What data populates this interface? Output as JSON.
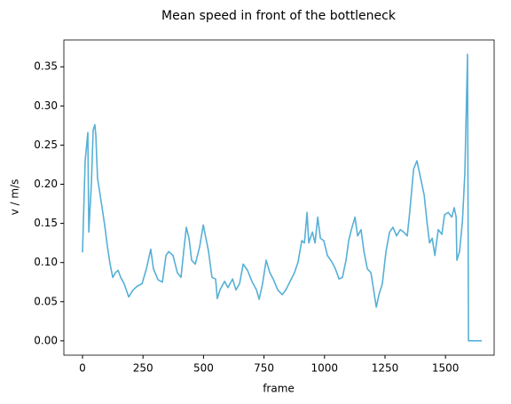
{
  "chart_data": {
    "type": "line",
    "title": "Mean speed in front of the bottleneck",
    "x_label": "frame",
    "y_label": "v / m/s",
    "series": [
      {
        "color": "#56b0d6",
        "x": [
          0,
          11,
          22,
          26,
          37,
          44,
          51,
          55,
          62,
          70,
          81,
          92,
          103,
          114,
          125,
          136,
          147,
          158,
          172,
          191,
          209,
          227,
          246,
          264,
          282,
          293,
          312,
          330,
          345,
          356,
          374,
          392,
          407,
          418,
          429,
          440,
          451,
          466,
          484,
          499,
          510,
          521,
          535,
          550,
          557,
          568,
          587,
          601,
          620,
          634,
          649,
          664,
          682,
          700,
          719,
          730,
          744,
          759,
          774,
          788,
          807,
          825,
          840,
          858,
          876,
          891,
          906,
          917,
          928,
          935,
          950,
          961,
          972,
          983,
          997,
          1012,
          1030,
          1045,
          1060,
          1074,
          1089,
          1100,
          1111,
          1126,
          1137,
          1151,
          1163,
          1177,
          1192,
          1203,
          1214,
          1225,
          1239,
          1254,
          1269,
          1283,
          1298,
          1313,
          1327,
          1342,
          1353,
          1368,
          1382,
          1397,
          1412,
          1423,
          1434,
          1445,
          1456,
          1470,
          1485,
          1496,
          1511,
          1526,
          1536,
          1544,
          1547,
          1558,
          1570,
          1580,
          1591,
          1595,
          1650
        ],
        "values": [
          0.113,
          0.23,
          0.266,
          0.139,
          0.203,
          0.269,
          0.276,
          0.263,
          0.208,
          0.192,
          0.17,
          0.147,
          0.12,
          0.098,
          0.081,
          0.087,
          0.09,
          0.081,
          0.073,
          0.056,
          0.065,
          0.07,
          0.073,
          0.092,
          0.117,
          0.092,
          0.078,
          0.075,
          0.109,
          0.114,
          0.109,
          0.087,
          0.081,
          0.114,
          0.145,
          0.131,
          0.103,
          0.098,
          0.12,
          0.148,
          0.131,
          0.114,
          0.081,
          0.079,
          0.054,
          0.065,
          0.076,
          0.068,
          0.079,
          0.065,
          0.073,
          0.098,
          0.09,
          0.076,
          0.065,
          0.053,
          0.073,
          0.103,
          0.087,
          0.079,
          0.065,
          0.059,
          0.065,
          0.076,
          0.087,
          0.101,
          0.128,
          0.125,
          0.164,
          0.125,
          0.139,
          0.125,
          0.158,
          0.131,
          0.128,
          0.109,
          0.101,
          0.092,
          0.079,
          0.081,
          0.103,
          0.128,
          0.142,
          0.158,
          0.134,
          0.142,
          0.114,
          0.092,
          0.087,
          0.065,
          0.043,
          0.059,
          0.073,
          0.114,
          0.139,
          0.145,
          0.134,
          0.142,
          0.139,
          0.134,
          0.167,
          0.219,
          0.23,
          0.208,
          0.186,
          0.153,
          0.125,
          0.131,
          0.109,
          0.142,
          0.136,
          0.161,
          0.164,
          0.158,
          0.17,
          0.158,
          0.103,
          0.114,
          0.153,
          0.214,
          0.366,
          0,
          0
        ]
      }
    ],
    "xlim": [
      -77,
      1701
    ],
    "ylim": [
      -0.0183,
      0.3843
    ],
    "xticks": [
      0,
      250,
      500,
      750,
      1000,
      1250,
      1500
    ],
    "yticks": [
      {
        "value": 0,
        "label": "0.00"
      },
      {
        "value": 0.05,
        "label": "0.05"
      },
      {
        "value": 0.1,
        "label": "0.10"
      },
      {
        "value": 0.15,
        "label": "0.15"
      },
      {
        "value": 0.2,
        "label": "0.20"
      },
      {
        "value": 0.25,
        "label": "0.25"
      },
      {
        "value": 0.3,
        "label": "0.30"
      },
      {
        "value": 0.35,
        "label": "0.35"
      }
    ]
  }
}
